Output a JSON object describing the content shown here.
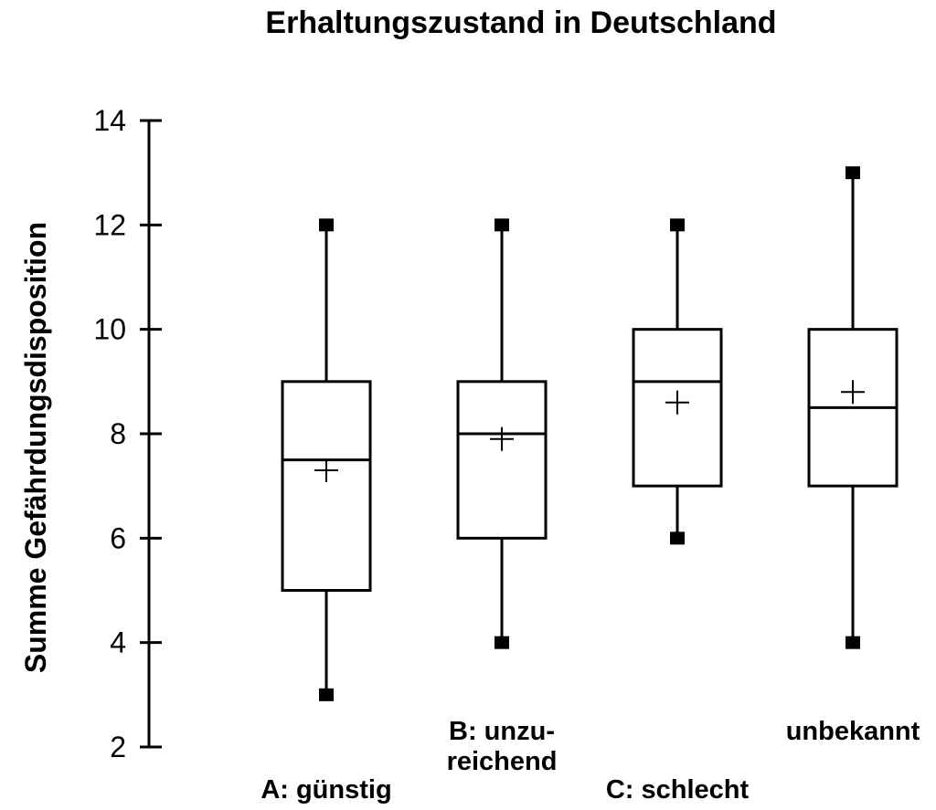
{
  "chart_data": {
    "type": "boxplot",
    "title": "Erhaltungszustand in Deutschland",
    "xlabel": "",
    "ylabel": "Summe Gefährdungsdisposition",
    "ylim": [
      2,
      14
    ],
    "yticks": [
      "2",
      "4",
      "6",
      "8",
      "10",
      "12",
      "14"
    ],
    "grid": false,
    "categories": [
      {
        "label_lines": [
          "A: günstig"
        ],
        "label_row": "lower",
        "min": 3,
        "q1": 5,
        "median": 7.5,
        "q3": 9,
        "max": 12,
        "mean": 7.3
      },
      {
        "label_lines": [
          "B: unzu-",
          "reichend"
        ],
        "label_row": "upper",
        "min": 4,
        "q1": 6,
        "median": 8,
        "q3": 9,
        "max": 12,
        "mean": 7.9
      },
      {
        "label_lines": [
          "C: schlecht"
        ],
        "label_row": "lower",
        "min": 6,
        "q1": 7,
        "median": 9,
        "q3": 10,
        "max": 12,
        "mean": 8.6
      },
      {
        "label_lines": [
          "unbekannt"
        ],
        "label_row": "upper",
        "min": 4,
        "q1": 7,
        "median": 8.5,
        "q3": 10,
        "max": 13,
        "mean": 8.8
      }
    ]
  }
}
